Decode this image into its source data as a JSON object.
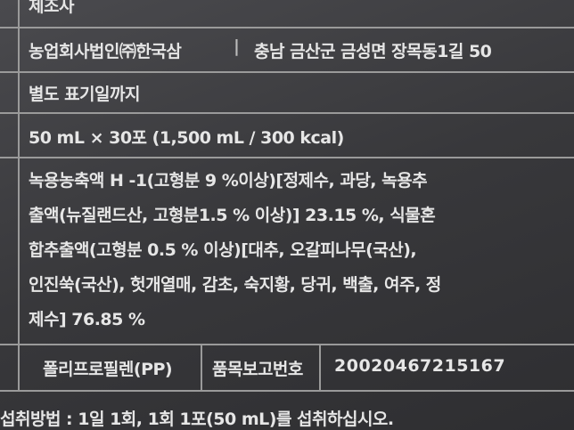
{
  "label": {
    "manufacturer_heading": "제조사",
    "manufacturer": "농업회사법인㈜한국삼",
    "address": "충남 금산군 금성면 장목동1길 50",
    "expiry": "별도 표기일까지",
    "volume": "50 mL × 30포 (1,500 mL / 300 kcal)",
    "ingredients": [
      "녹용농축액 H -1(고형분 9 %이상)[정제수, 과당, 녹용추",
      "출액(뉴질랜드산, 고형분1.5 % 이상)] 23.15 %, 식물혼",
      "합추출액(고형분 0.5 % 이상)[대추, 오갈피나무(국산),",
      "인진쑥(국산), 헛개열매, 감초, 숙지황, 당귀, 백출, 여주, 정",
      "제수] 76.85 %"
    ],
    "packaging": "폴리프로필렌(PP)",
    "report_heading": "품목보고번호",
    "report_number": "20020467215167",
    "usage": "섭취방법 : 1일 1회, 1회 1포(50 mL)를 섭취하십시오."
  }
}
